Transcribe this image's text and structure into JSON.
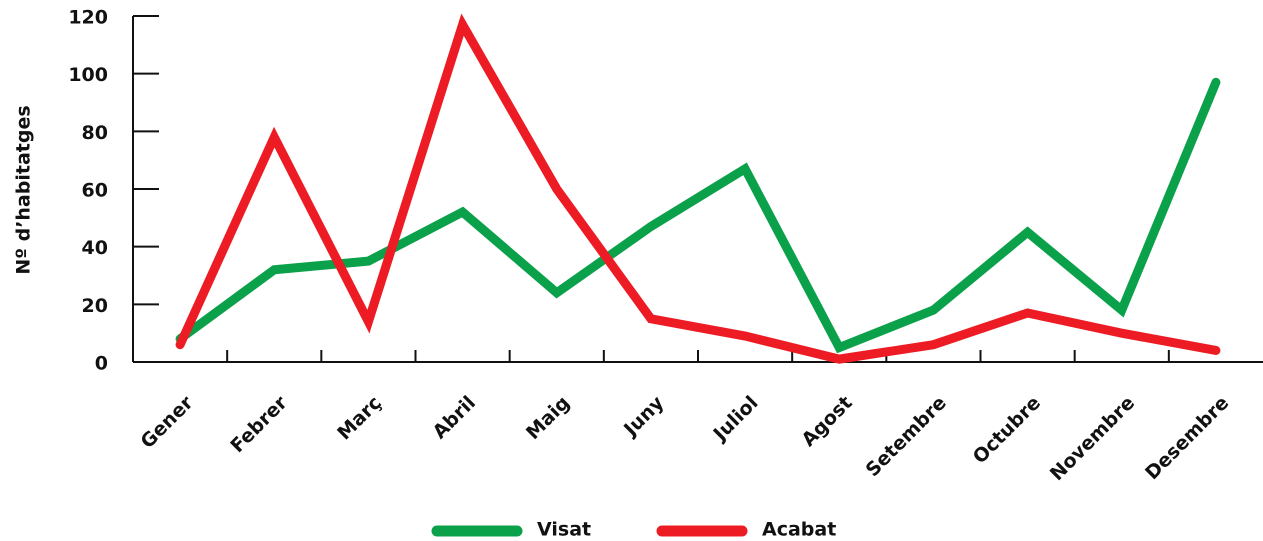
{
  "chart_data": {
    "type": "line",
    "ylabel": "Nº d’habitatges",
    "categories": [
      "Gener",
      "Febrer",
      "Març",
      "Abril",
      "Maig",
      "Juny",
      "Juliol",
      "Agost",
      "Setembre",
      "Octubre",
      "Novembre",
      "Desembre"
    ],
    "series": [
      {
        "name": "Visat",
        "color": "#0aa14a",
        "values": [
          8,
          32,
          35,
          52,
          24,
          47,
          67,
          5,
          18,
          45,
          18,
          97
        ]
      },
      {
        "name": "Acabat",
        "color": "#ed1c24",
        "values": [
          6,
          78,
          14,
          117,
          60,
          15,
          9,
          1,
          6,
          17,
          10,
          4
        ]
      }
    ],
    "ylim": [
      0,
      120
    ],
    "yticks": [
      0,
      20,
      40,
      60,
      80,
      100,
      120
    ],
    "grid": false,
    "legend": "bottom"
  }
}
